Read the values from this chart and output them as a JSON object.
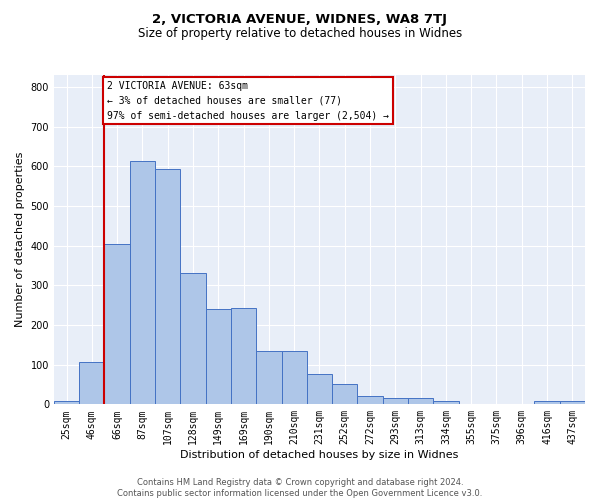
{
  "title": "2, VICTORIA AVENUE, WIDNES, WA8 7TJ",
  "subtitle": "Size of property relative to detached houses in Widnes",
  "xlabel": "Distribution of detached houses by size in Widnes",
  "ylabel": "Number of detached properties",
  "categories": [
    "25sqm",
    "46sqm",
    "66sqm",
    "87sqm",
    "107sqm",
    "128sqm",
    "149sqm",
    "169sqm",
    "190sqm",
    "210sqm",
    "231sqm",
    "252sqm",
    "272sqm",
    "293sqm",
    "313sqm",
    "334sqm",
    "355sqm",
    "375sqm",
    "396sqm",
    "416sqm",
    "437sqm"
  ],
  "values": [
    8,
    107,
    403,
    612,
    592,
    330,
    241,
    242,
    134,
    134,
    77,
    50,
    22,
    16,
    16,
    9,
    0,
    0,
    0,
    9,
    9
  ],
  "bar_color": "#aec6e8",
  "bar_edge_color": "#4472c4",
  "vline_color": "#cc0000",
  "annotation_text": "2 VICTORIA AVENUE: 63sqm\n← 3% of detached houses are smaller (77)\n97% of semi-detached houses are larger (2,504) →",
  "annotation_box_color": "#cc0000",
  "annotation_text_color": "#000000",
  "ylim": [
    0,
    830
  ],
  "yticks": [
    0,
    100,
    200,
    300,
    400,
    500,
    600,
    700,
    800
  ],
  "bg_color": "#e8eef8",
  "footer": "Contains HM Land Registry data © Crown copyright and database right 2024.\nContains public sector information licensed under the Open Government Licence v3.0.",
  "title_fontsize": 9.5,
  "subtitle_fontsize": 8.5,
  "xlabel_fontsize": 8,
  "ylabel_fontsize": 8,
  "footer_fontsize": 6,
  "tick_fontsize": 7,
  "annot_fontsize": 7
}
